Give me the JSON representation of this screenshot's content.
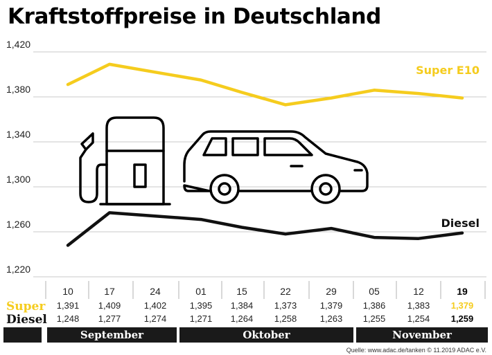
{
  "title": "Kraftstoffpreise in Deutschland",
  "source": "Quelle: www.adac.de/tanken  © 11.2019  ADAC e.V.",
  "colors": {
    "super": "#F5CC1E",
    "diesel": "#111111",
    "grid": "#c8c8c8",
    "bar": "#1a1a1a"
  },
  "icons": [
    "fuel-pump-icon",
    "car-icon"
  ],
  "table": {
    "super_label": "Super",
    "diesel_label": "Diesel",
    "months": [
      "September",
      "Oktober",
      "November"
    ]
  },
  "chart_data": {
    "type": "line",
    "title": "Kraftstoffpreise in Deutschland",
    "categories": [
      "10",
      "17",
      "24",
      "01",
      "15",
      "22",
      "29",
      "05",
      "12",
      "19"
    ],
    "months": [
      {
        "name": "September",
        "categories": [
          "10",
          "17",
          "24"
        ]
      },
      {
        "name": "Oktober",
        "categories": [
          "01",
          "15",
          "22",
          "29"
        ]
      },
      {
        "name": "November",
        "categories": [
          "05",
          "12",
          "19"
        ]
      }
    ],
    "series": [
      {
        "name": "Super E10",
        "row_label": "Super",
        "color": "#F5CC1E",
        "values": [
          1.391,
          1.409,
          1.402,
          1.395,
          1.384,
          1.373,
          1.379,
          1.386,
          1.383,
          1.379
        ],
        "labels": [
          "1,391",
          "1,409",
          "1,402",
          "1,395",
          "1,384",
          "1,373",
          "1,379",
          "1,386",
          "1,383",
          "1,379"
        ]
      },
      {
        "name": "Diesel",
        "row_label": "Diesel",
        "color": "#111111",
        "values": [
          1.248,
          1.277,
          1.274,
          1.271,
          1.264,
          1.258,
          1.263,
          1.255,
          1.254,
          1.259
        ],
        "labels": [
          "1,248",
          "1,277",
          "1,274",
          "1,271",
          "1,264",
          "1,258",
          "1,263",
          "1,255",
          "1,254",
          "1,259"
        ]
      }
    ],
    "y_ticks": [
      "1,420",
      "1,380",
      "1,340",
      "1,300",
      "1,260",
      "1,220"
    ],
    "y_tick_values": [
      1.42,
      1.38,
      1.34,
      1.3,
      1.26,
      1.22
    ],
    "ylim": [
      1.22,
      1.42
    ],
    "grid": true,
    "last_point_highlighted": true
  }
}
